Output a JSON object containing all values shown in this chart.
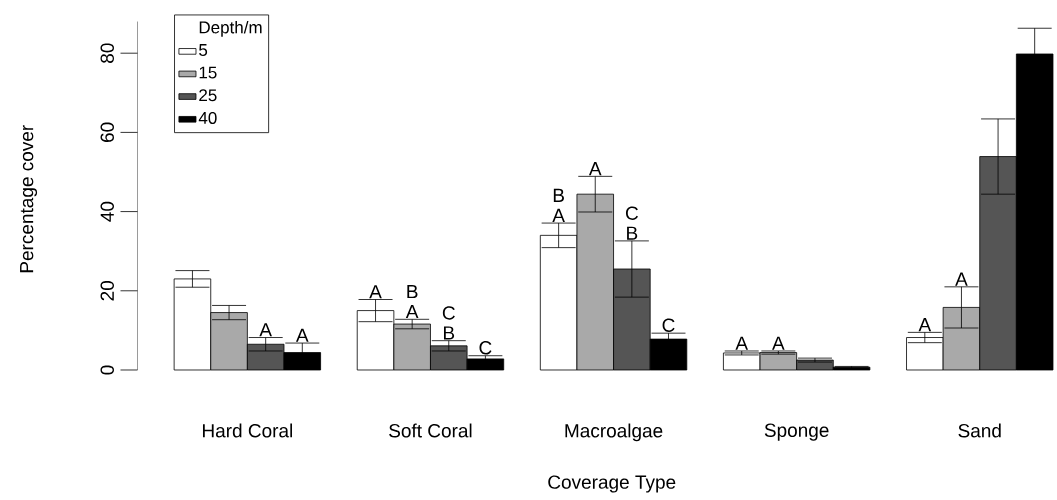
{
  "chart_data": {
    "type": "bar",
    "xlabel": "Coverage Type",
    "ylabel": "Percentage cover",
    "legend_title": "Depth/m",
    "legend": "top left",
    "categories": [
      "Hard Coral",
      "Soft Coral",
      "Macroalgae",
      "Sponge",
      "Sand"
    ],
    "ylim": [
      0,
      88
    ],
    "yticks": [
      0,
      20,
      40,
      60,
      80
    ],
    "series": [
      {
        "name": "5",
        "color": "#ffffff",
        "values": [
          23.0,
          15.0,
          34.0,
          4.3,
          8.2
        ],
        "errors": [
          2.1,
          2.8,
          3.1,
          0.5,
          1.3
        ],
        "value_labels": [
          null,
          "A",
          "B A",
          "A",
          "A"
        ]
      },
      {
        "name": "15",
        "color": "#a9a9a9",
        "values": [
          14.5,
          11.6,
          44.4,
          4.4,
          15.8
        ],
        "errors": [
          1.8,
          1.2,
          4.5,
          0.4,
          5.2
        ],
        "value_labels": [
          null,
          "B A",
          "A",
          "A",
          "A"
        ]
      },
      {
        "name": "25",
        "color": "#555555",
        "values": [
          6.5,
          6.1,
          25.5,
          2.5,
          53.9
        ],
        "errors": [
          1.7,
          1.3,
          7.1,
          0.5,
          9.5
        ],
        "value_labels": [
          "A",
          "C B",
          "C B",
          null,
          null
        ]
      },
      {
        "name": "40",
        "color": "#000000",
        "values": [
          4.4,
          2.8,
          7.8,
          0.7,
          79.8
        ],
        "errors": [
          2.4,
          0.8,
          1.5,
          0.2,
          6.5
        ],
        "value_labels": [
          "A",
          "C",
          "C",
          null,
          null
        ]
      }
    ]
  }
}
